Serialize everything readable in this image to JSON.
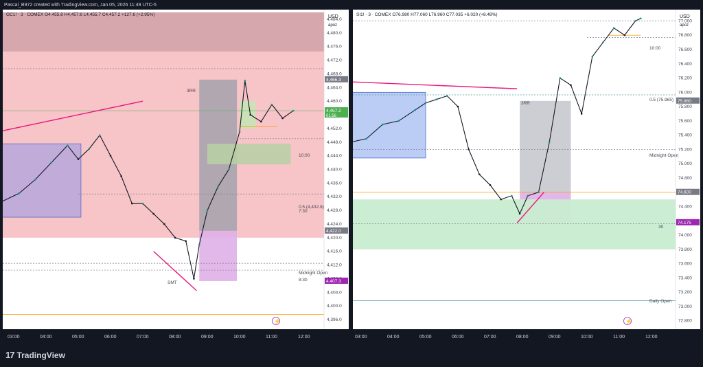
{
  "credit": "Pascal_B972 created with TradingView.com, Jan 05, 2026 11:49 UTC-5",
  "brand": "TradingView",
  "icons": {
    "brand": "tradingview-logo-icon",
    "settings": "gear-icon",
    "flash": "lightning-icon",
    "check": "check-icon"
  },
  "colors": {
    "bull": "#089981",
    "bear": "#131722",
    "supply_zone": "#f7c4c8",
    "demand_zone": "#c8ecd0",
    "box_blue": "#b4c8f5",
    "box_purple": "#b8a8dc",
    "magenta": "#e8197d",
    "orange": "#ff9800",
    "green_label": "#4caf50",
    "purple_label": "#9c27b0"
  },
  "chart_data": [
    {
      "type": "line",
      "symbol": "GC1!",
      "legend": "GC1! · 3 · COMEX  O4,455.8  H4,457.6  L4,455.7  C4,457.2  +127.6 (+2.95%)",
      "currency": "USD",
      "scale_mode": "apoz",
      "x_ticks": [
        "03:00",
        "04:00",
        "05:00",
        "06:00",
        "07:00",
        "08:00",
        "09:00",
        "10:00",
        "11:00",
        "12:00"
      ],
      "y_ticks": [
        "4,484.0",
        "4,480.0",
        "4,476.0",
        "4,472.0",
        "4,468.0",
        "4,464.0",
        "4,460.0",
        "4,456.0",
        "4,452.0",
        "4,448.0",
        "4,444.0",
        "4,440.0",
        "4,436.0",
        "4,432.0",
        "4,428.0",
        "4,424.0",
        "4,420.0",
        "4,416.0",
        "4,412.0",
        "4,408.0",
        "4,404.0",
        "4,400.0",
        "4,396.0"
      ],
      "ylim": [
        4394,
        4486
      ],
      "series": [
        {
          "x": [
            "02:30",
            "03:10",
            "03:40",
            "04:10",
            "04:40",
            "05:00",
            "05:20",
            "05:40",
            "06:00",
            "06:20",
            "06:40",
            "07:00",
            "07:20",
            "07:40",
            "08:00",
            "08:20",
            "08:35",
            "08:45",
            "09:00",
            "09:20",
            "09:40",
            "10:00",
            "10:10",
            "10:20",
            "10:40",
            "11:00",
            "11:20",
            "11:40"
          ],
          "y": [
            4430.0,
            4433.0,
            4437.0,
            4442.0,
            4447.0,
            4443.0,
            4446.0,
            4450.0,
            4444.0,
            4438.0,
            4430.0,
            4430.0,
            4427.0,
            4424.0,
            4420.0,
            4419.0,
            4408.0,
            4418.0,
            4428.0,
            4435.0,
            4440.0,
            4451.0,
            4466.0,
            4456.0,
            4454.0,
            4459.0,
            4455.0,
            4457.2
          ]
        }
      ],
      "price_labels": [
        {
          "text": "4,466.3",
          "value": 4466.3,
          "color": "#787b86"
        },
        {
          "text": "4,457.2",
          "value": 4457.2,
          "color": "#4caf50",
          "sub": "01:56"
        },
        {
          "text": "4,422.0",
          "value": 4422.0,
          "color": "#787b86"
        },
        {
          "text": "4,407.3",
          "value": 4407.3,
          "color": "#9c27b0"
        }
      ],
      "annotations": [
        "3RR",
        "10:00",
        "0.5 (4,432.8)",
        "7:30",
        "Midnight Open",
        "8:30",
        "SMT"
      ]
    },
    {
      "type": "line",
      "symbol": "SI1!",
      "legend": "SI1! · 3 · COMEX  O76.980  H77.060  L76.960  C77.035  +6.020 (+8.48%)",
      "currency": "USD",
      "scale_mode": "apoz",
      "x_ticks": [
        "03:00",
        "04:00",
        "05:00",
        "06:00",
        "07:00",
        "08:00",
        "09:00",
        "10:00",
        "11:00",
        "12:00"
      ],
      "y_ticks": [
        "77.000",
        "76.800",
        "76.600",
        "76.400",
        "76.200",
        "76.000",
        "75.800",
        "75.600",
        "75.400",
        "75.200",
        "75.000",
        "74.800",
        "74.600",
        "74.400",
        "74.200",
        "74.000",
        "73.800",
        "73.600",
        "73.400",
        "73.200",
        "73.000",
        "72.800"
      ],
      "ylim": [
        72.72,
        77.12
      ],
      "series": [
        {
          "x": [
            "02:40",
            "03:10",
            "03:40",
            "04:10",
            "04:40",
            "05:00",
            "05:20",
            "05:40",
            "06:00",
            "06:20",
            "06:40",
            "07:00",
            "07:20",
            "07:40",
            "07:55",
            "08:10",
            "08:30",
            "08:50",
            "09:10",
            "09:30",
            "09:50",
            "10:10",
            "10:30",
            "10:50",
            "11:10",
            "11:30",
            "11:40"
          ],
          "y": [
            75.3,
            75.35,
            75.55,
            75.6,
            75.75,
            75.85,
            75.9,
            75.95,
            75.8,
            75.2,
            74.85,
            74.7,
            74.5,
            74.55,
            74.3,
            74.55,
            74.6,
            75.3,
            76.2,
            76.1,
            75.7,
            76.5,
            76.7,
            76.9,
            76.8,
            77.0,
            77.035
          ]
        }
      ],
      "price_labels": [
        {
          "text": "75.880",
          "value": 75.88,
          "color": "#787b86"
        },
        {
          "text": "74.600",
          "value": 74.6,
          "color": "#787b86"
        },
        {
          "text": "74.175",
          "value": 74.175,
          "color": "#9c27b0"
        }
      ],
      "annotations": [
        "3RR",
        "10:00",
        "0.5 (75.965)",
        "Midnight Open",
        "30",
        "Daily Open"
      ]
    }
  ]
}
